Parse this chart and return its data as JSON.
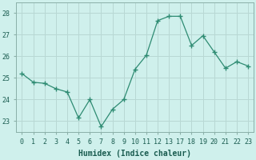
{
  "x": [
    0,
    1,
    2,
    3,
    4,
    5,
    6,
    7,
    8,
    9,
    10,
    11,
    12,
    13,
    17,
    18,
    19,
    20,
    21,
    22,
    23
  ],
  "y": [
    25.2,
    24.8,
    24.75,
    24.5,
    24.35,
    23.15,
    24.0,
    22.75,
    23.55,
    24.0,
    25.4,
    26.05,
    27.65,
    27.85,
    27.85,
    26.5,
    26.95,
    26.2,
    25.45,
    25.75,
    25.55
  ],
  "line_color": "#2e8b72",
  "marker": "+",
  "marker_size": 5,
  "bg_color": "#cff0ec",
  "grid_color_major": "#b8d8d4",
  "grid_color_minor": "#daeae8",
  "xlabel": "Humidex (Indice chaleur)",
  "ylim": [
    22.5,
    28.5
  ],
  "yticks": [
    23,
    24,
    25,
    26,
    27,
    28
  ],
  "xtick_labels": [
    "0",
    "1",
    "2",
    "3",
    "4",
    "5",
    "6",
    "7",
    "8",
    "9",
    "10",
    "11",
    "12",
    "13",
    "17",
    "18",
    "19",
    "20",
    "21",
    "22",
    "23"
  ],
  "xlim": [
    -0.5,
    23.5
  ],
  "tick_fontsize": 6,
  "xlabel_fontsize": 7
}
